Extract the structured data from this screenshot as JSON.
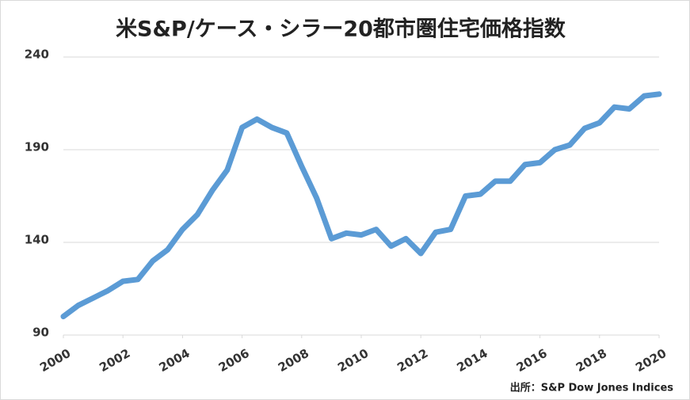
{
  "chart_data": {
    "type": "line",
    "title": "米S&P/ケース・シラー20都市圏住宅価格指数",
    "source": "出所：S&P Dow Jones Indices",
    "x": [
      2000,
      2000.5,
      2001,
      2001.5,
      2002,
      2002.5,
      2003,
      2003.5,
      2004,
      2004.5,
      2005,
      2005.5,
      2006,
      2006.5,
      2007,
      2007.5,
      2008,
      2008.5,
      2009,
      2009.5,
      2010,
      2010.5,
      2011,
      2011.5,
      2012,
      2012.5,
      2013,
      2013.5,
      2014,
      2014.5,
      2015,
      2015.5,
      2016,
      2016.5,
      2017,
      2017.5,
      2018,
      2018.5,
      2019,
      2019.5,
      2020
    ],
    "series": [
      {
        "color": "#5b9bd5",
        "values": [
          100,
          106,
          110,
          114,
          119,
          120,
          130,
          136,
          147,
          155,
          168,
          179,
          202,
          206.5,
          202,
          199,
          181,
          164,
          142,
          145,
          144,
          147,
          138,
          142,
          134,
          145.5,
          147,
          165,
          166,
          173,
          173,
          182,
          183,
          190,
          192.5,
          201.5,
          204.5,
          213,
          212,
          219,
          220
        ]
      }
    ],
    "xlim": [
      2000,
      2020
    ],
    "xticks": [
      2000,
      2002,
      2004,
      2006,
      2008,
      2010,
      2012,
      2014,
      2016,
      2018,
      2020
    ],
    "ylim": [
      90,
      240
    ],
    "yticks": [
      90,
      140,
      190,
      240
    ],
    "grid": true
  }
}
